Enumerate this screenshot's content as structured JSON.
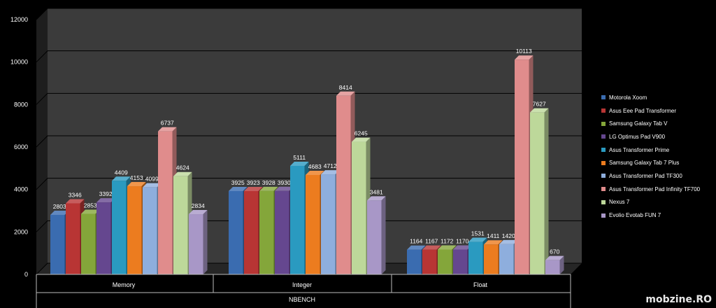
{
  "chart_data": {
    "type": "bar",
    "categories": [
      "Memory",
      "Integer",
      "Float"
    ],
    "xlabel": "NBENCH",
    "ylim": [
      0,
      12000
    ],
    "yticks": [
      0,
      2000,
      4000,
      6000,
      8000,
      10000,
      12000
    ],
    "grid": true,
    "legend_position": "right",
    "series": [
      {
        "name": "Motorola Xoom",
        "color": "#3a6cb0",
        "values": [
          2803,
          3925,
          1164
        ]
      },
      {
        "name": "Asus Eee Pad Transformer",
        "color": "#b83534",
        "values": [
          3346,
          3923,
          1167
        ]
      },
      {
        "name": "Samsung Galaxy Tab V",
        "color": "#84a63a",
        "values": [
          2853,
          3928,
          1172
        ]
      },
      {
        "name": "LG Optimus Pad V900",
        "color": "#65478f",
        "values": [
          3392,
          3930,
          1170
        ]
      },
      {
        "name": "Asus Transformer Prime",
        "color": "#2a9ac0",
        "values": [
          4409,
          5111,
          1531
        ]
      },
      {
        "name": "Samsung Galaxy Tab 7 Plus",
        "color": "#ec7c1f",
        "values": [
          4153,
          4683,
          1411
        ]
      },
      {
        "name": "Asus Transformer Pad TF300",
        "color": "#8eaedd",
        "values": [
          4099,
          4712,
          1420
        ]
      },
      {
        "name": "Asus Transformer Pad Infinity TF700",
        "color": "#e08c8c",
        "values": [
          6737,
          8414,
          10113
        ]
      },
      {
        "name": "Nexus 7",
        "color": "#bdd89a",
        "values": [
          4624,
          6245,
          7627
        ]
      },
      {
        "name": "Evolio Evotab FUN 7",
        "color": "#a897c7",
        "values": [
          2834,
          3481,
          670
        ]
      }
    ]
  },
  "watermark": "mobzine.RO"
}
